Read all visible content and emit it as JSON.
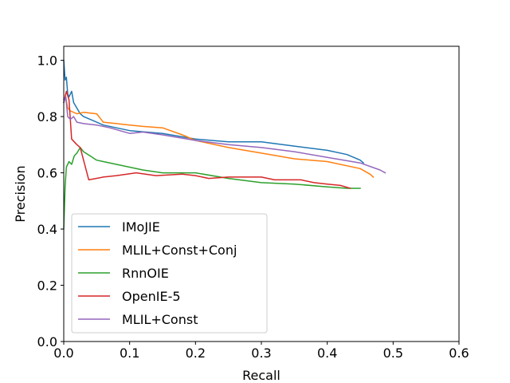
{
  "chart_data": {
    "type": "line",
    "title": "",
    "xlabel": "Recall",
    "ylabel": "Precision",
    "xlim": [
      0.0,
      0.6
    ],
    "ylim": [
      0.0,
      1.05
    ],
    "xticks": [
      0.0,
      0.1,
      0.2,
      0.3,
      0.4,
      0.5,
      0.6
    ],
    "yticks": [
      0.0,
      0.2,
      0.4,
      0.6,
      0.8,
      1.0
    ],
    "xtick_labels": [
      "0.0",
      "0.1",
      "0.2",
      "0.3",
      "0.4",
      "0.5",
      "0.6"
    ],
    "ytick_labels": [
      "0.0",
      "0.2",
      "0.4",
      "0.6",
      "0.8",
      "1.0"
    ],
    "grid": false,
    "legend_position": "lower-left",
    "series": [
      {
        "name": "IMoJIE",
        "color": "#1f77b4",
        "points": [
          [
            0.0,
            1.0
          ],
          [
            0.002,
            0.93
          ],
          [
            0.004,
            0.94
          ],
          [
            0.006,
            0.88
          ],
          [
            0.008,
            0.87
          ],
          [
            0.012,
            0.89
          ],
          [
            0.015,
            0.85
          ],
          [
            0.02,
            0.83
          ],
          [
            0.025,
            0.81
          ],
          [
            0.03,
            0.8
          ],
          [
            0.04,
            0.79
          ],
          [
            0.05,
            0.78
          ],
          [
            0.06,
            0.77
          ],
          [
            0.08,
            0.76
          ],
          [
            0.1,
            0.75
          ],
          [
            0.15,
            0.74
          ],
          [
            0.2,
            0.72
          ],
          [
            0.25,
            0.71
          ],
          [
            0.3,
            0.71
          ],
          [
            0.35,
            0.695
          ],
          [
            0.4,
            0.68
          ],
          [
            0.43,
            0.665
          ],
          [
            0.45,
            0.645
          ],
          [
            0.455,
            0.635
          ]
        ]
      },
      {
        "name": "MLIL+Const+Conj",
        "color": "#ff7f0e",
        "points": [
          [
            0.0,
            0.86
          ],
          [
            0.003,
            0.87
          ],
          [
            0.006,
            0.83
          ],
          [
            0.01,
            0.82
          ],
          [
            0.02,
            0.81
          ],
          [
            0.03,
            0.815
          ],
          [
            0.05,
            0.81
          ],
          [
            0.06,
            0.78
          ],
          [
            0.08,
            0.775
          ],
          [
            0.1,
            0.77
          ],
          [
            0.12,
            0.765
          ],
          [
            0.15,
            0.76
          ],
          [
            0.18,
            0.735
          ],
          [
            0.2,
            0.715
          ],
          [
            0.25,
            0.69
          ],
          [
            0.3,
            0.67
          ],
          [
            0.35,
            0.65
          ],
          [
            0.4,
            0.64
          ],
          [
            0.45,
            0.615
          ],
          [
            0.465,
            0.595
          ],
          [
            0.47,
            0.585
          ]
        ]
      },
      {
        "name": "RnnOIE",
        "color": "#2ca02c",
        "points": [
          [
            0.0,
            0.4
          ],
          [
            0.002,
            0.55
          ],
          [
            0.004,
            0.62
          ],
          [
            0.008,
            0.64
          ],
          [
            0.012,
            0.63
          ],
          [
            0.016,
            0.66
          ],
          [
            0.02,
            0.67
          ],
          [
            0.025,
            0.69
          ],
          [
            0.03,
            0.675
          ],
          [
            0.04,
            0.66
          ],
          [
            0.05,
            0.645
          ],
          [
            0.06,
            0.64
          ],
          [
            0.08,
            0.63
          ],
          [
            0.1,
            0.62
          ],
          [
            0.12,
            0.61
          ],
          [
            0.15,
            0.6
          ],
          [
            0.2,
            0.6
          ],
          [
            0.25,
            0.58
          ],
          [
            0.3,
            0.565
          ],
          [
            0.35,
            0.56
          ],
          [
            0.4,
            0.55
          ],
          [
            0.43,
            0.545
          ],
          [
            0.45,
            0.545
          ]
        ]
      },
      {
        "name": "OpenIE-5",
        "color": "#d62728",
        "points": [
          [
            0.0,
            0.85
          ],
          [
            0.004,
            0.89
          ],
          [
            0.008,
            0.86
          ],
          [
            0.012,
            0.72
          ],
          [
            0.02,
            0.7
          ],
          [
            0.025,
            0.69
          ],
          [
            0.038,
            0.575
          ],
          [
            0.06,
            0.585
          ],
          [
            0.08,
            0.59
          ],
          [
            0.11,
            0.6
          ],
          [
            0.14,
            0.59
          ],
          [
            0.18,
            0.595
          ],
          [
            0.2,
            0.59
          ],
          [
            0.22,
            0.58
          ],
          [
            0.25,
            0.585
          ],
          [
            0.3,
            0.585
          ],
          [
            0.32,
            0.575
          ],
          [
            0.36,
            0.575
          ],
          [
            0.38,
            0.565
          ],
          [
            0.4,
            0.56
          ],
          [
            0.42,
            0.555
          ],
          [
            0.435,
            0.545
          ]
        ]
      },
      {
        "name": "MLIL+Const",
        "color": "#9467bd",
        "points": [
          [
            0.0,
            0.85
          ],
          [
            0.003,
            0.87
          ],
          [
            0.006,
            0.8
          ],
          [
            0.01,
            0.79
          ],
          [
            0.015,
            0.8
          ],
          [
            0.02,
            0.78
          ],
          [
            0.03,
            0.775
          ],
          [
            0.05,
            0.77
          ],
          [
            0.07,
            0.76
          ],
          [
            0.1,
            0.74
          ],
          [
            0.12,
            0.745
          ],
          [
            0.15,
            0.735
          ],
          [
            0.2,
            0.715
          ],
          [
            0.25,
            0.7
          ],
          [
            0.3,
            0.69
          ],
          [
            0.35,
            0.675
          ],
          [
            0.4,
            0.655
          ],
          [
            0.45,
            0.635
          ],
          [
            0.48,
            0.61
          ],
          [
            0.488,
            0.6
          ]
        ]
      }
    ]
  }
}
